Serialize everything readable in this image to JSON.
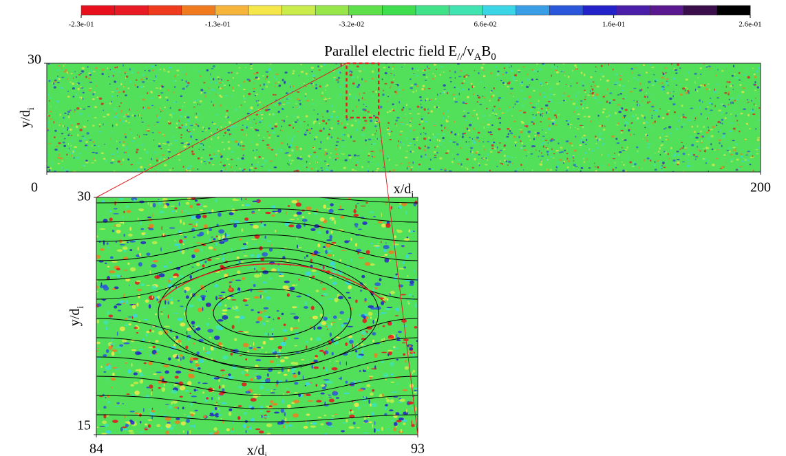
{
  "colorbar": {
    "colors": [
      "#e8101c",
      "#e81a24",
      "#ef3a1e",
      "#f27a1e",
      "#f7b43a",
      "#f5e64a",
      "#c9ec4a",
      "#96e64a",
      "#5ee04a",
      "#3ede4e",
      "#40e28a",
      "#40e4b0",
      "#3ad6e6",
      "#3a9ee6",
      "#2a56dc",
      "#2222c8",
      "#4a1ea8",
      "#5a1890",
      "#3a0e4a",
      "#000000"
    ],
    "lim": [
      -0.23,
      0.26
    ],
    "ticks": [
      {
        "value": -0.23,
        "label": "-2.3e-01"
      },
      {
        "value": -0.13,
        "label": "-1.3e-01"
      },
      {
        "value": -0.032,
        "label": "-3.2e-02"
      },
      {
        "value": 0.066,
        "label": "6.6e-02"
      },
      {
        "value": 0.16,
        "label": "1.6e-01"
      },
      {
        "value": 0.26,
        "label": "2.6e-01"
      }
    ]
  },
  "overview": {
    "title": [
      {
        "text": "Parallel electric field E",
        "sub": false
      },
      {
        "text": "//",
        "sub": true
      },
      {
        "text": "/v",
        "sub": false
      },
      {
        "text": "A",
        "sub": true
      },
      {
        "text": "B",
        "sub": false
      },
      {
        "text": "0",
        "sub": true
      }
    ],
    "xlabel": [
      {
        "text": "x/d",
        "sub": false
      },
      {
        "text": "i",
        "sub": true
      }
    ],
    "ylabel": [
      {
        "text": "y/d",
        "sub": false
      },
      {
        "text": "i",
        "sub": true
      }
    ],
    "xlim": [
      0,
      200
    ],
    "ylim": [
      0,
      30
    ],
    "xticks": [
      0,
      200
    ],
    "yticks": [
      30
    ]
  },
  "zoom": {
    "xlabel": [
      {
        "text": "x/d",
        "sub": false
      },
      {
        "text": "i",
        "sub": true
      }
    ],
    "ylabel": [
      {
        "text": "y/d",
        "sub": false
      },
      {
        "text": "i",
        "sub": true
      }
    ],
    "xlim": [
      84,
      93
    ],
    "ylim": [
      15,
      30
    ],
    "xticks": [
      84,
      93
    ],
    "yticks": [
      15,
      30
    ]
  }
}
